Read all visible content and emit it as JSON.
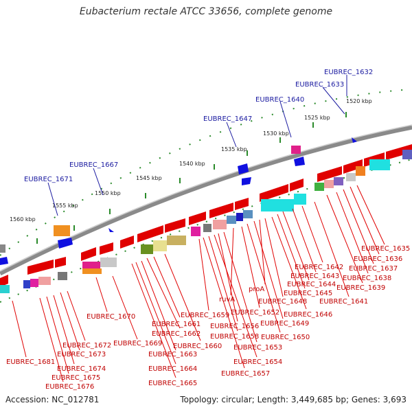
{
  "title": "Eubacterium rectale ATCC 33656, complete genome",
  "footer": {
    "accession": "Accession: NC_012781",
    "topology": "Topology: circular; Length: 3,449,685 bp; Genes: 3,693"
  },
  "colors": {
    "gene_forward": "#e00000",
    "label_blue": "#1a1aa0",
    "label_red": "#c00000",
    "backbone": "#888888",
    "tick": "#2a8a2a"
  },
  "ticks": [
    {
      "label": "1520 kbp"
    },
    {
      "label": "1525 kbp"
    },
    {
      "label": "1530 kbp"
    },
    {
      "label": "1535 kbp"
    },
    {
      "label": "1540 kbp"
    },
    {
      "label": "1545 kbp"
    },
    {
      "label": "1550 kbp"
    },
    {
      "label": "1555 kbp"
    },
    {
      "label": "1560 kbp"
    }
  ],
  "outer_labels": [
    "EUBREC_1632",
    "EUBREC_1633",
    "EUBREC_1640",
    "EUBREC_1647",
    "EUBREC_1667",
    "EUBREC_1671"
  ],
  "inner_labels": [
    "EUBREC_1635",
    "EUBREC_1636",
    "EUBREC_1637",
    "EUBREC_1638",
    "EUBREC_1639",
    "EUBREC_1641",
    "EUBREC_1642",
    "EUBREC_1643",
    "EUBREC_1644",
    "EUBREC_1645",
    "EUBREC_1646",
    "proA",
    "EUBREC_1648",
    "EUBREC_1649",
    "ruvA",
    "EUBREC_1652",
    "EUBREC_1650",
    "EUBREC_1659",
    "EUBREC_1656",
    "EUBREC_1658",
    "EUBREC_1653",
    "EUBREC_1654",
    "EUBREC_1657",
    "EUBREC_1661",
    "EUBREC_1662",
    "EUBREC_1660",
    "EUBREC_1663",
    "EUBREC_1664",
    "EUBREC_1665",
    "EUBREC_1670",
    "EUBREC_1669",
    "EUBREC_1672",
    "EUBREC_1673",
    "EUBREC_1674",
    "EUBREC_1675",
    "EUBREC_1676",
    "EUBREC_1681"
  ]
}
